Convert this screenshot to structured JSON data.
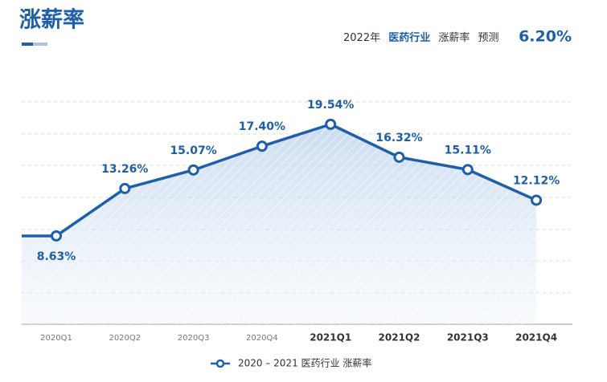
{
  "chart_data": {
    "type": "line",
    "title": "涨薪率",
    "forecast": {
      "year": "2022年",
      "industry": "医药行业",
      "metric": "涨薪率",
      "label": "预测",
      "value": "6.20%"
    },
    "categories": [
      "2020Q1",
      "2020Q2",
      "2020Q3",
      "2020Q4",
      "2021Q1",
      "2021Q2",
      "2021Q3",
      "2021Q4"
    ],
    "series": [
      {
        "name": "2020 – 2021 医药行业 涨薪率",
        "color": "#1f5fa8",
        "values": [
          8.63,
          13.26,
          15.07,
          17.4,
          19.54,
          16.32,
          15.11,
          12.12
        ],
        "value_labels": [
          "8.63%",
          "13.26%",
          "15.07%",
          "17.40%",
          "19.54%",
          "16.32%",
          "15.11%",
          "12.12%"
        ]
      }
    ],
    "ylim": [
      0,
      24
    ]
  }
}
